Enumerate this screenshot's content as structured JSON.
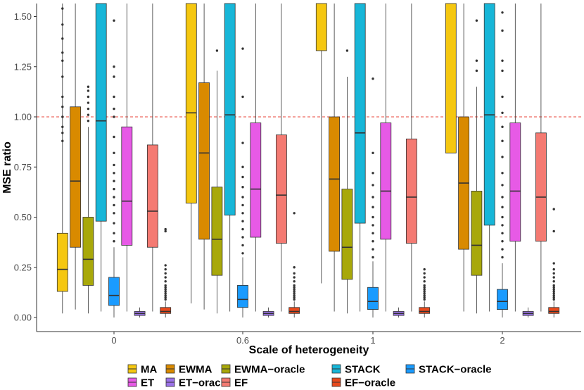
{
  "chart_data": {
    "type": "boxplot",
    "title": "",
    "xlabel": "Scale of heterogeneity",
    "ylabel": "MSE ratio",
    "ylim": [
      -0.03,
      1.57
    ],
    "yticks": [
      0.0,
      0.25,
      0.5,
      0.75,
      1.0,
      1.25,
      1.5
    ],
    "ytick_labels": [
      "0.00",
      "0.25",
      "0.50",
      "0.75",
      "1.00",
      "1.25",
      "1.50"
    ],
    "reference_line": {
      "y": 1.0,
      "color": "#e8443a",
      "style": "dashed"
    },
    "categories": [
      "0",
      "0.6",
      "1",
      "2"
    ],
    "legend_position": "bottom",
    "series": [
      {
        "name": "MA",
        "color": "#f5c710",
        "boxes": [
          {
            "q1": 0.13,
            "median": 0.24,
            "q3": 0.42,
            "wlo": 0.02,
            "whi": 1.57,
            "outliers": [
              0.88,
              0.92,
              0.95,
              1.0,
              1.05,
              1.1,
              1.2,
              1.28,
              1.32,
              1.39,
              1.46,
              1.54
            ]
          },
          {
            "q1": 0.57,
            "median": 1.02,
            "q3": 1.57,
            "wlo": 0.07,
            "whi": 1.57,
            "outliers": []
          },
          {
            "q1": 1.33,
            "median": 1.57,
            "q3": 1.57,
            "wlo": 0.17,
            "whi": 1.57,
            "outliers": []
          },
          {
            "q1": 0.82,
            "median": 1.57,
            "q3": 1.57,
            "wlo": 0.82,
            "whi": 1.57,
            "outliers": []
          }
        ]
      },
      {
        "name": "EWMA",
        "color": "#d98a00",
        "boxes": [
          {
            "q1": 0.35,
            "median": 0.68,
            "q3": 1.05,
            "wlo": 0.04,
            "whi": 1.57,
            "outliers": []
          },
          {
            "q1": 0.39,
            "median": 0.82,
            "q3": 1.17,
            "wlo": 0.04,
            "whi": 1.57,
            "outliers": []
          },
          {
            "q1": 0.33,
            "median": 0.69,
            "q3": 1.0,
            "wlo": 0.03,
            "whi": 1.57,
            "outliers": []
          },
          {
            "q1": 0.34,
            "median": 0.67,
            "q3": 1.0,
            "wlo": 0.03,
            "whi": 1.57,
            "outliers": []
          }
        ]
      },
      {
        "name": "EWMA-oracle",
        "color": "#a8a80a",
        "boxes": [
          {
            "q1": 0.16,
            "median": 0.29,
            "q3": 0.5,
            "wlo": 0.02,
            "whi": 0.95,
            "outliers": [
              0.98,
              1.01,
              1.04,
              1.07,
              1.1,
              1.13,
              1.15
            ]
          },
          {
            "q1": 0.21,
            "median": 0.39,
            "q3": 0.65,
            "wlo": 0.02,
            "whi": 1.23,
            "outliers": [
              1.33
            ]
          },
          {
            "q1": 0.19,
            "median": 0.35,
            "q3": 0.64,
            "wlo": 0.02,
            "whi": 1.2,
            "outliers": [
              1.33
            ]
          },
          {
            "q1": 0.21,
            "median": 0.36,
            "q3": 0.63,
            "wlo": 0.02,
            "whi": 1.15,
            "outliers": [
              1.23,
              1.28,
              1.48
            ]
          }
        ]
      },
      {
        "name": "ET",
        "color": "#e75ae6",
        "boxes": [
          {
            "q1": 0.36,
            "median": 0.58,
            "q3": 0.95,
            "wlo": 0.03,
            "whi": 1.57,
            "outliers": []
          },
          {
            "q1": 0.4,
            "median": 0.64,
            "q3": 0.97,
            "wlo": 0.03,
            "whi": 1.57,
            "outliers": []
          },
          {
            "q1": 0.39,
            "median": 0.63,
            "q3": 0.97,
            "wlo": 0.03,
            "whi": 1.57,
            "outliers": []
          },
          {
            "q1": 0.38,
            "median": 0.63,
            "q3": 0.97,
            "wlo": 0.03,
            "whi": 1.57,
            "outliers": []
          }
        ]
      },
      {
        "name": "ET-oracle",
        "color": "#9b72e8",
        "boxes": [
          {
            "q1": 0.01,
            "median": 0.02,
            "q3": 0.03,
            "wlo": 0.0,
            "whi": 0.05,
            "outliers": []
          },
          {
            "q1": 0.01,
            "median": 0.02,
            "q3": 0.03,
            "wlo": 0.0,
            "whi": 0.05,
            "outliers": []
          },
          {
            "q1": 0.01,
            "median": 0.02,
            "q3": 0.03,
            "wlo": 0.0,
            "whi": 0.05,
            "outliers": []
          },
          {
            "q1": 0.01,
            "median": 0.02,
            "q3": 0.03,
            "wlo": 0.0,
            "whi": 0.05,
            "outliers": []
          }
        ]
      },
      {
        "name": "EF",
        "color": "#f47a72",
        "boxes": [
          {
            "q1": 0.35,
            "median": 0.53,
            "q3": 0.86,
            "wlo": 0.03,
            "whi": 1.57,
            "outliers": []
          },
          {
            "q1": 0.37,
            "median": 0.61,
            "q3": 0.91,
            "wlo": 0.03,
            "whi": 1.57,
            "outliers": []
          },
          {
            "q1": 0.37,
            "median": 0.6,
            "q3": 0.89,
            "wlo": 0.03,
            "whi": 1.57,
            "outliers": []
          },
          {
            "q1": 0.38,
            "median": 0.6,
            "q3": 0.92,
            "wlo": 0.03,
            "whi": 1.57,
            "outliers": []
          }
        ]
      },
      {
        "name": "STACK",
        "color": "#17b6d8",
        "boxes": [
          {
            "q1": 0.48,
            "median": 0.98,
            "q3": 1.57,
            "wlo": 0.03,
            "whi": 1.57,
            "outliers": []
          },
          {
            "q1": 0.51,
            "median": 1.01,
            "q3": 1.57,
            "wlo": 0.03,
            "whi": 1.57,
            "outliers": []
          },
          {
            "q1": 0.47,
            "median": 0.92,
            "q3": 1.57,
            "wlo": 0.03,
            "whi": 1.57,
            "outliers": []
          },
          {
            "q1": 0.46,
            "median": 1.01,
            "q3": 1.57,
            "wlo": 0.03,
            "whi": 1.57,
            "outliers": []
          }
        ]
      },
      {
        "name": "EF-oracle",
        "color": "#e8491c",
        "boxes": [
          {
            "q1": 0.02,
            "median": 0.03,
            "q3": 0.05,
            "wlo": 0.0,
            "whi": 0.08,
            "outliers": [
              0.09,
              0.1,
              0.11,
              0.12,
              0.13,
              0.14,
              0.15,
              0.16,
              0.18,
              0.2,
              0.22,
              0.24,
              0.26,
              0.43,
              0.44
            ]
          },
          {
            "q1": 0.02,
            "median": 0.03,
            "q3": 0.05,
            "wlo": 0.0,
            "whi": 0.08,
            "outliers": [
              0.09,
              0.1,
              0.11,
              0.12,
              0.13,
              0.14,
              0.15,
              0.16,
              0.18,
              0.2,
              0.22,
              0.25,
              0.52
            ]
          },
          {
            "q1": 0.02,
            "median": 0.03,
            "q3": 0.05,
            "wlo": 0.0,
            "whi": 0.08,
            "outliers": [
              0.09,
              0.1,
              0.11,
              0.12,
              0.13,
              0.14,
              0.15,
              0.16,
              0.18,
              0.2,
              0.22,
              0.24
            ]
          },
          {
            "q1": 0.02,
            "median": 0.03,
            "q3": 0.05,
            "wlo": 0.0,
            "whi": 0.08,
            "outliers": [
              0.09,
              0.1,
              0.11,
              0.12,
              0.13,
              0.14,
              0.15,
              0.16,
              0.18,
              0.2,
              0.22,
              0.24,
              0.27,
              0.43,
              0.54
            ]
          }
        ]
      },
      {
        "name": "STACK-oracle",
        "color": "#1a9bff",
        "boxes": [
          {
            "q1": 0.06,
            "median": 0.11,
            "q3": 0.2,
            "wlo": 0.0,
            "whi": 0.35,
            "outliers": [
              0.38,
              0.42,
              0.47,
              0.52,
              0.56,
              0.6,
              0.64,
              0.68,
              0.72,
              0.76,
              0.82,
              0.9,
              1.0,
              1.04,
              1.1,
              1.2,
              1.25,
              1.48
            ]
          },
          {
            "q1": 0.05,
            "median": 0.09,
            "q3": 0.16,
            "wlo": 0.0,
            "whi": 0.3,
            "outliers": [
              0.32,
              0.36,
              0.4,
              0.44,
              0.48,
              0.52,
              0.56,
              0.6,
              0.65,
              0.7,
              0.75,
              0.87,
              1.1,
              1.34
            ]
          },
          {
            "q1": 0.04,
            "median": 0.08,
            "q3": 0.15,
            "wlo": 0.0,
            "whi": 0.28,
            "outliers": [
              0.3,
              0.34,
              0.38,
              0.42,
              0.46,
              0.5,
              0.55,
              0.6,
              0.66,
              0.72,
              0.82,
              1.19
            ]
          },
          {
            "q1": 0.04,
            "median": 0.08,
            "q3": 0.14,
            "wlo": 0.0,
            "whi": 0.27,
            "outliers": [
              0.3,
              0.34,
              0.38,
              0.42,
              0.46,
              0.5,
              0.55,
              0.6,
              0.66,
              0.72,
              0.8,
              0.88,
              0.95,
              1.02,
              1.1,
              1.23,
              1.28,
              1.43,
              1.52
            ]
          }
        ]
      }
    ]
  },
  "legend": {
    "items": [
      {
        "label": "MA",
        "series": "MA"
      },
      {
        "label": "ET",
        "series": "ET"
      },
      {
        "label": "EWMA",
        "series": "EWMA"
      },
      {
        "label": "ET−oracle",
        "series": "ET-oracle"
      },
      {
        "label": "EWMA−oracle",
        "series": "EWMA-oracle"
      },
      {
        "label": "EF",
        "series": "EF"
      },
      {
        "label": "STACK",
        "series": "STACK"
      },
      {
        "label": "EF−oracle",
        "series": "EF-oracle"
      },
      {
        "label": "STACK−oracle",
        "series": "STACK-oracle"
      }
    ]
  },
  "colors": {
    "axis": "#333333",
    "tick_text": "#4d4d4d",
    "outlier": "#333333"
  }
}
